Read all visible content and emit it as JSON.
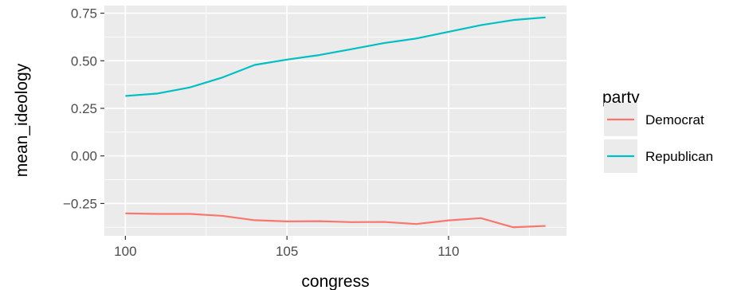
{
  "chart_data": {
    "type": "line",
    "xlabel": "congress",
    "ylabel": "mean_ideology",
    "xlim": [
      99.35,
      113.65
    ],
    "ylim": [
      -0.42,
      0.79
    ],
    "x_ticks": [
      100,
      105,
      110
    ],
    "x_tick_labels": [
      "100",
      "105",
      "110"
    ],
    "y_ticks": [
      -0.25,
      0,
      0.25,
      0.5,
      0.75
    ],
    "y_tick_labels": [
      "−0.25",
      "0.00",
      "0.25",
      "0.50",
      "0.75"
    ],
    "grid": true,
    "legend": {
      "title": "party",
      "position": "right"
    },
    "x": [
      100,
      101,
      102,
      103,
      104,
      105,
      106,
      107,
      108,
      109,
      110,
      111,
      112,
      113
    ],
    "series": [
      {
        "name": "Democrat",
        "color": "#F8766D",
        "values": [
          -0.302,
          -0.305,
          -0.305,
          -0.315,
          -0.338,
          -0.344,
          -0.343,
          -0.348,
          -0.347,
          -0.358,
          -0.339,
          -0.327,
          -0.375,
          -0.368
        ]
      },
      {
        "name": "Republican",
        "color": "#00BFC4",
        "values": [
          0.315,
          0.328,
          0.36,
          0.412,
          0.478,
          0.506,
          0.53,
          0.561,
          0.593,
          0.617,
          0.652,
          0.687,
          0.714,
          0.728
        ]
      }
    ]
  }
}
